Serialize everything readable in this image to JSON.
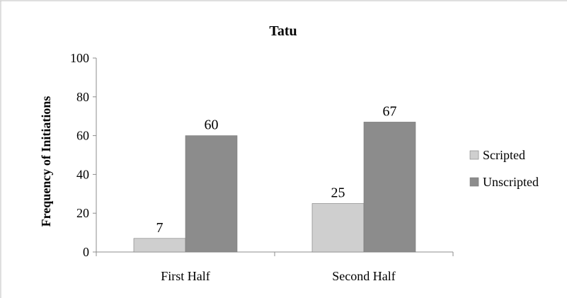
{
  "chart_data": {
    "type": "bar",
    "title": "Tatu",
    "xlabel": "",
    "ylabel": "Frequency of Initiations",
    "ylim": [
      0,
      100
    ],
    "yticks": [
      0,
      20,
      40,
      60,
      80,
      100
    ],
    "categories": [
      "First Half",
      "Second Half"
    ],
    "series": [
      {
        "name": "Scripted",
        "values": [
          7,
          25
        ],
        "color": "#cfcfcf"
      },
      {
        "name": "Unscripted",
        "values": [
          60,
          67
        ],
        "color": "#8c8c8c"
      }
    ],
    "data_labels": true,
    "grid": false,
    "legend_position": "right"
  }
}
